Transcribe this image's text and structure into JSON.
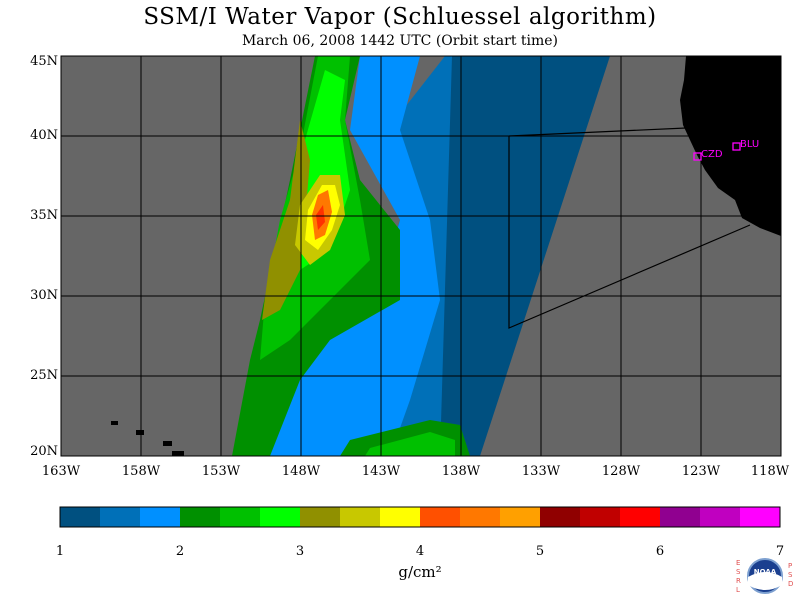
{
  "title": "SSM/I Water Vapor (Schluessel algorithm)",
  "subtitle": "March 06, 2008  1442 UTC  (Orbit start time)",
  "map": {
    "lat_labels": [
      "45N",
      "40N",
      "35N",
      "30N",
      "25N",
      "20N"
    ],
    "lon_labels": [
      "163W",
      "158W",
      "153W",
      "148W",
      "143W",
      "138W",
      "133W",
      "128W",
      "123W",
      "118W"
    ],
    "stations": [
      {
        "label": "CZD"
      },
      {
        "label": "BLU"
      }
    ],
    "colors": {
      "nodata": "#666666",
      "land": "#000000",
      "station": "#ff00ff",
      "grid": "#000000"
    }
  },
  "colorbar": {
    "tick_labels": [
      "1",
      "2",
      "3",
      "4",
      "5",
      "6",
      "7"
    ],
    "units": "g/cm²",
    "colors": [
      "#005080",
      "#0070b8",
      "#0090ff",
      "#009000",
      "#00c000",
      "#00ff00",
      "#909000",
      "#c8c800",
      "#ffff00",
      "#ff5000",
      "#ff7800",
      "#ffa000",
      "#900000",
      "#c00000",
      "#ff0000",
      "#900090",
      "#c000c0",
      "#ff00ff"
    ]
  },
  "logo": {
    "left_letters": "ESRL",
    "right_letters": "PSD",
    "emblem_text": "NOAA"
  }
}
